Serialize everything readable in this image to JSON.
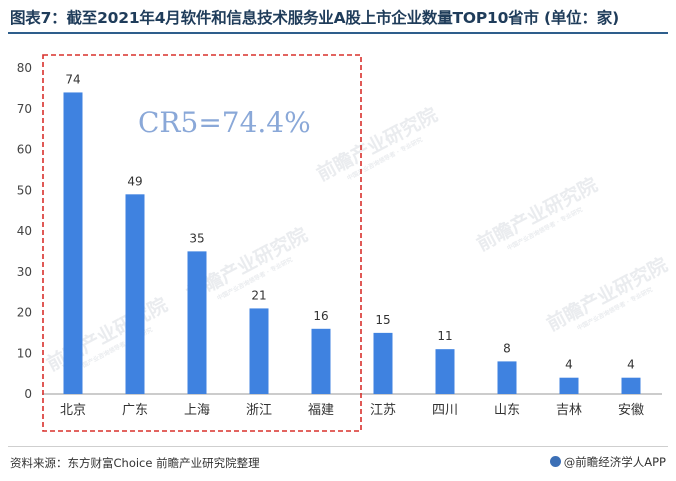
{
  "header": {
    "title": "图表7：截至2021年4月软件和信息技术服务业A股上市企业数量TOP10省市 (单位：家)"
  },
  "footer": {
    "source": "资料来源：东方财富Choice 前瞻产业研究院整理",
    "brand": "@前瞻经济学人APP"
  },
  "watermark": {
    "text": "前瞻产业研究院",
    "subtext": "中国产业咨询领导者 · 专业研究"
  },
  "annotation": {
    "cr5": "CR5=74.4%"
  },
  "colors": {
    "bar": "#3f82e0",
    "highlight_box": "#d9302c",
    "annotation_text": "#8aa8d8",
    "axis": "#999999"
  },
  "chart_data": {
    "type": "bar",
    "title": "",
    "xlabel": "",
    "ylabel": "",
    "categories": [
      "北京",
      "广东",
      "上海",
      "浙江",
      "福建",
      "江苏",
      "四川",
      "山东",
      "吉林",
      "安徽"
    ],
    "values": [
      74,
      49,
      35,
      21,
      16,
      15,
      11,
      8,
      4,
      4
    ],
    "data_labels": [
      "74",
      "49",
      "35",
      "21",
      "16",
      "15",
      "11",
      "8",
      "4",
      "4"
    ],
    "ylim": [
      0,
      80
    ],
    "yticks": [
      "0",
      "10",
      "20",
      "30",
      "40",
      "50",
      "60",
      "70",
      "80"
    ],
    "grid": false,
    "legend": "none",
    "highlighted_categories": [
      "北京",
      "广东",
      "上海",
      "浙江",
      "福建"
    ]
  }
}
